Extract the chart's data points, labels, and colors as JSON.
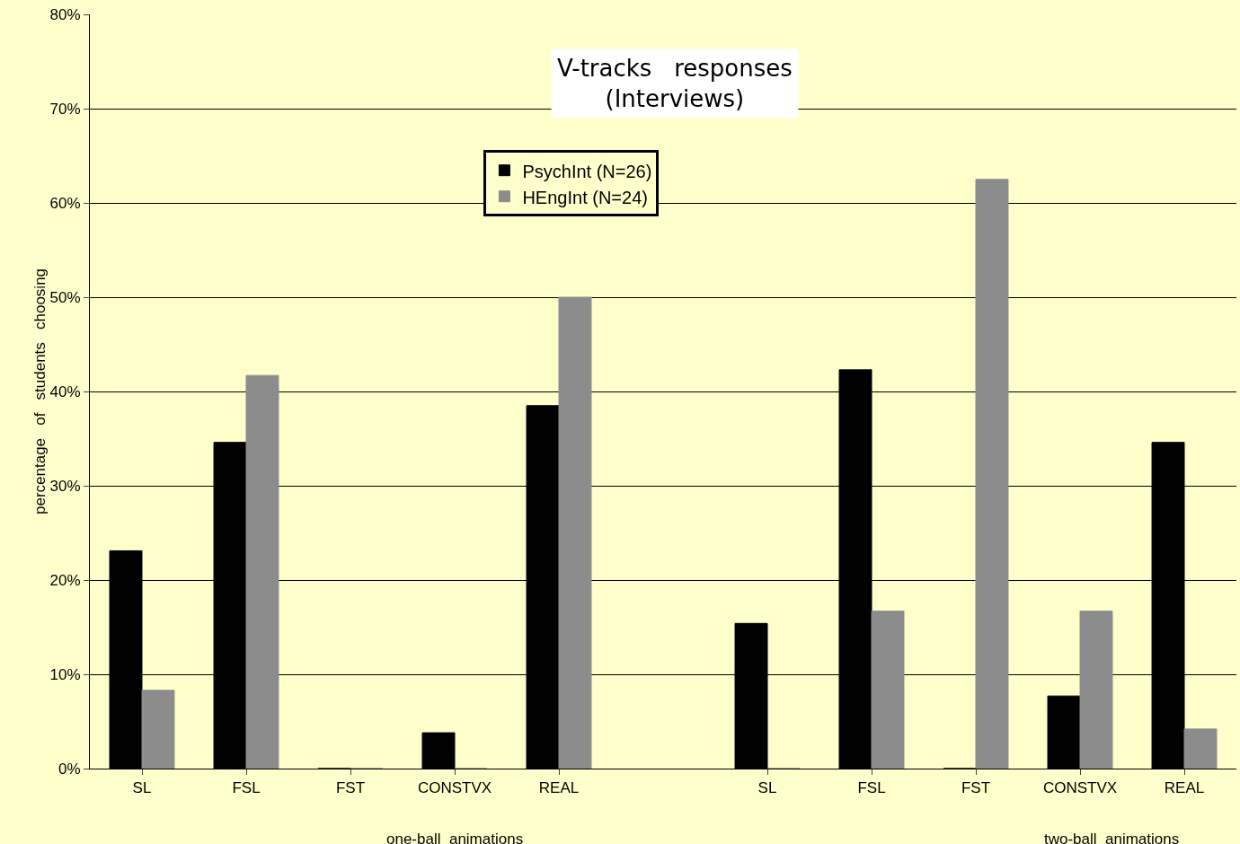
{
  "chart_data": {
    "type": "bar",
    "title": "V-tracks   responses\n(Interviews)",
    "ylabel": "percentage   of   students   choosing",
    "categories": [
      "SL",
      "FSL",
      "FST",
      "CONSTVX",
      "REAL",
      null,
      "SL",
      "FSL",
      "FST",
      "CONSTVX",
      "REAL"
    ],
    "series": [
      {
        "name": "PsychInt (N=26)",
        "color": "#000000",
        "values": [
          23.1,
          34.6,
          0,
          3.8,
          38.5,
          null,
          15.4,
          42.3,
          0,
          7.7,
          34.6
        ]
      },
      {
        "name": "HEngInt (N=24)",
        "color": "#8c8c8c",
        "values": [
          8.3,
          41.7,
          0,
          0,
          50,
          null,
          0,
          16.7,
          62.5,
          16.7,
          4.2
        ]
      }
    ],
    "ylim": [
      0,
      80
    ],
    "yticks": [
      {
        "value": 0,
        "label": "0%"
      },
      {
        "value": 10,
        "label": "10%"
      },
      {
        "value": 20,
        "label": "20%"
      },
      {
        "value": 30,
        "label": "30%"
      },
      {
        "value": 40,
        "label": "40%"
      },
      {
        "value": 50,
        "label": "50%"
      },
      {
        "value": 60,
        "label": "60%"
      },
      {
        "value": 70,
        "label": "70%"
      },
      {
        "value": 80,
        "label": "80%"
      }
    ],
    "grid": "y",
    "legend": "top",
    "annotations": [
      "one-ball  animations",
      "two-ball  animations"
    ]
  }
}
